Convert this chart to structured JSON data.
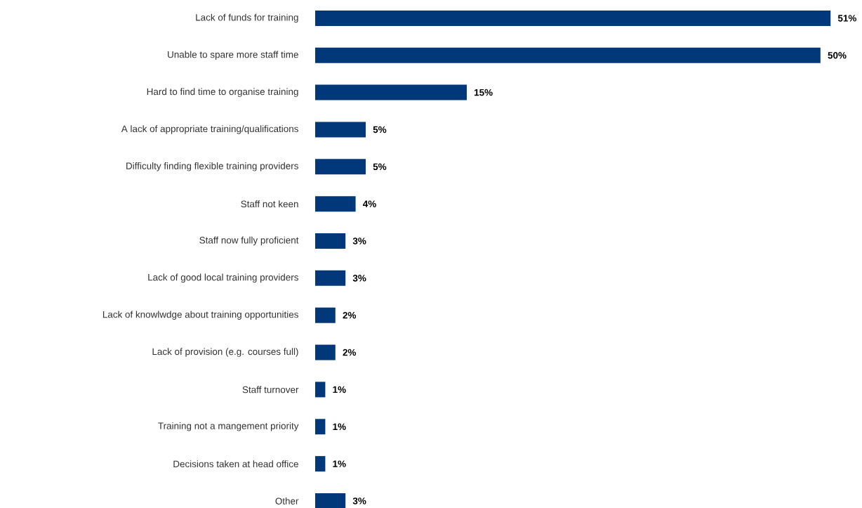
{
  "chart_data": {
    "type": "bar",
    "orientation": "horizontal",
    "categories": [
      "Lack of funds for training",
      "Unable to spare more staff time",
      "Hard to find time to organise training",
      "A lack of appropriate training/qualifications",
      "Difficulty finding flexible training providers",
      "Staff not keen",
      "Staff now fully proficient",
      "Lack of good local training providers",
      "Lack of knowlwdge about training opportunities",
      "Lack of provision (e.g. courses full)",
      "Staff turnover",
      "Training not a mangement priority",
      "Decisions taken at head office",
      "Other"
    ],
    "values": [
      51,
      50,
      15,
      5,
      5,
      4,
      3,
      3,
      2,
      2,
      1,
      1,
      1,
      3
    ],
    "value_labels": [
      "51%",
      "50%",
      "15%",
      "5%",
      "5%",
      "4%",
      "3%",
      "3%",
      "2%",
      "2%",
      "1%",
      "1%",
      "1%",
      "3%"
    ],
    "color": "#00387a"
  }
}
